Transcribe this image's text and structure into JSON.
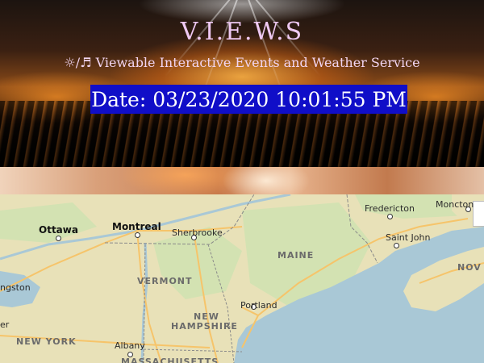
{
  "header": {
    "title": "V.I.E.W.S",
    "subtitle_icon_sun": "☼",
    "subtitle_sep": "/",
    "subtitle_icon_music": "♬",
    "subtitle": "Viewable Interactive Events and Weather Service",
    "date_text": "Date: 03/23/2020 10:01:55 PM"
  },
  "map": {
    "cities": {
      "ottawa": "Ottawa",
      "montreal": "Montreal",
      "sherbrooke": "Sherbrooke",
      "fredericton": "Fredericton",
      "moncton": "Moncton",
      "saint_john": "Saint John",
      "portland": "Portland",
      "albany": "Albany",
      "kingston": "ngston",
      "left_edge": "er"
    },
    "regions": {
      "maine": "MAINE",
      "vermont": "VERMONT",
      "new_hampshire_1": "NEW",
      "new_hampshire_2": "HAMPSHIRE",
      "new_york": "NEW YORK",
      "massachusetts": "MASSACHUSETTS",
      "nova": "NOV"
    },
    "colors": {
      "land": "#e8e1b8",
      "forest": "#cfe0b0",
      "water": "#a9c8d6",
      "roads": "#f6c46a"
    }
  }
}
